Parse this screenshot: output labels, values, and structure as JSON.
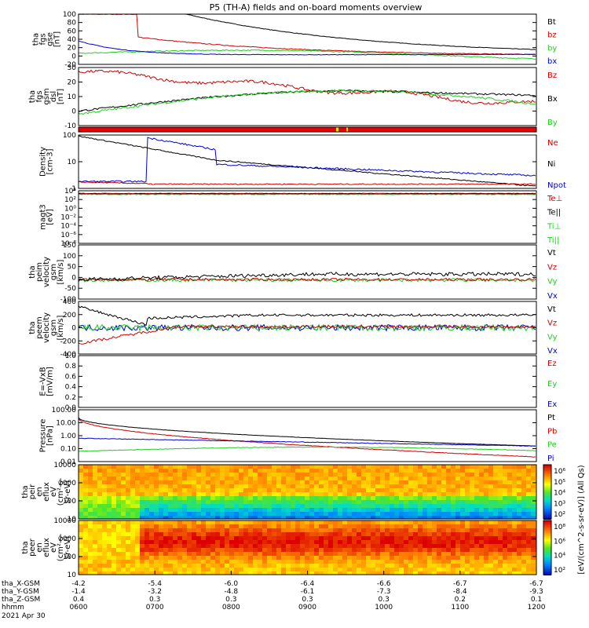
{
  "title": "P5 (TH-A) fields and on-board moments overview",
  "colors": {
    "black": "#000000",
    "red": "#cc0000",
    "green": "#22cc22",
    "blue": "#0000cc"
  },
  "panels": [
    {
      "id": "fgs-gse",
      "ylabel": [
        "tha",
        "fgs",
        "gse",
        "[nT]"
      ],
      "ticks": [
        "100",
        "80",
        "60",
        "40",
        "20",
        "0",
        "-20"
      ],
      "series": [
        {
          "name": "Bt",
          "color": "black"
        },
        {
          "name": "bz",
          "color": "red"
        },
        {
          "name": "by",
          "color": "green"
        },
        {
          "name": "bx",
          "color": "blue"
        }
      ]
    },
    {
      "id": "fgs-gsm",
      "ylabel": [
        "tha",
        "fgs",
        "gsm",
        "dsl",
        "[nT]"
      ],
      "ticks": [
        "30",
        "20",
        "10",
        "0",
        "-10"
      ],
      "series": [
        {
          "name": "Bz",
          "color": "red"
        },
        {
          "name": "Bx",
          "color": "black"
        },
        {
          "name": "By",
          "color": "green"
        }
      ]
    },
    {
      "id": "flags",
      "ylabel": [],
      "ticks": [],
      "series": []
    },
    {
      "id": "density",
      "ylabel": [
        "Density",
        "[cm-3]"
      ],
      "ticks": [
        "100",
        "10",
        "1"
      ],
      "series": [
        {
          "name": "Ne",
          "color": "red"
        },
        {
          "name": "Ni",
          "color": "black"
        },
        {
          "name": "Npot",
          "color": "blue"
        }
      ]
    },
    {
      "id": "temp",
      "ylabel": [
        "magt3",
        "[eV]"
      ],
      "ticks": [
        "10⁴",
        "10²",
        "10⁰",
        "10⁻²",
        "10⁻⁴",
        "10⁻⁶",
        "10⁻⁸"
      ],
      "series": [
        {
          "name": "Te⊥",
          "color": "red"
        },
        {
          "name": "Te||",
          "color": "black"
        },
        {
          "name": "Ti⊥",
          "color": "green"
        },
        {
          "name": "Ti||",
          "color": "green"
        }
      ]
    },
    {
      "id": "peim-vel",
      "ylabel": [
        "tha",
        "peim",
        "velocity",
        "gsm",
        "[km/s]"
      ],
      "ticks": [
        "150",
        "100",
        "50",
        "0",
        "-50",
        "-100"
      ],
      "series": [
        {
          "name": "Vt",
          "color": "black"
        },
        {
          "name": "Vz",
          "color": "red"
        },
        {
          "name": "Vy",
          "color": "green"
        },
        {
          "name": "Vx",
          "color": "blue"
        }
      ]
    },
    {
      "id": "peem-vel",
      "ylabel": [
        "tha",
        "peem",
        "velocity",
        "gsm",
        "[km/s]"
      ],
      "ticks": [
        "400",
        "200",
        "0",
        "-200",
        "-400"
      ],
      "series": [
        {
          "name": "Vt",
          "color": "black"
        },
        {
          "name": "Vz",
          "color": "red"
        },
        {
          "name": "Vy",
          "color": "green"
        },
        {
          "name": "Vx",
          "color": "blue"
        }
      ]
    },
    {
      "id": "efield",
      "ylabel": [
        "E=-VxB",
        "[mV/m]"
      ],
      "ticks": [
        "1.0",
        "0.8",
        "0.6",
        "0.4",
        "0.2",
        "0.0"
      ],
      "series": [
        {
          "name": "Ez",
          "color": "red"
        },
        {
          "name": "Ey",
          "color": "green"
        },
        {
          "name": "Ex",
          "color": "blue"
        }
      ]
    },
    {
      "id": "pressure",
      "ylabel": [
        "Pressure",
        "[nPa]"
      ],
      "ticks": [
        "100.00",
        "10.00",
        "1.00",
        "0.10",
        "0.01"
      ],
      "series": [
        {
          "name": "Pt",
          "color": "black"
        },
        {
          "name": "Pb",
          "color": "red"
        },
        {
          "name": "Pe",
          "color": "green"
        },
        {
          "name": "Pi",
          "color": "blue"
        }
      ]
    },
    {
      "id": "peir-spec",
      "ylabel": [
        "tha",
        "peir",
        "en",
        "eflux",
        "eV",
        "(cm²-s-",
        "sr-eV)"
      ],
      "ticks": [
        "10000",
        "1000",
        "100",
        "10"
      ],
      "series": []
    },
    {
      "id": "peer-spec",
      "ylabel": [
        "tha",
        "peer",
        "en",
        "eflux",
        "eV",
        "(cm²-s-",
        "sr-eV)"
      ],
      "ticks": [
        "10000",
        "1000",
        "100",
        "10"
      ],
      "series": []
    }
  ],
  "colorbar": {
    "upper_ticks": [
      "10⁶",
      "10⁵",
      "10⁴",
      "10³",
      "10²"
    ],
    "lower_ticks": [
      "10⁸",
      "10⁶",
      "10⁴",
      "10²"
    ],
    "label": "[eV/(cm^2-s-sr-eV)] (All Qs)"
  },
  "xaxis": {
    "rows": [
      {
        "label": "tha_X-GSM",
        "values": [
          "-4.2",
          "-5.4",
          "-6.0",
          "-6.4",
          "-6.6",
          "-6.7",
          "-6.7"
        ]
      },
      {
        "label": "tha_Y-GSM",
        "values": [
          "-1.4",
          "-3.2",
          "-4.8",
          "-6.1",
          "-7.3",
          "-8.4",
          "-9.3"
        ]
      },
      {
        "label": "tha_Z-GSM",
        "values": [
          "0.4",
          "0.3",
          "0.3",
          "0.3",
          "0.3",
          "0.2",
          "0.1"
        ]
      },
      {
        "label": "hhmm",
        "values": [
          "0600",
          "0700",
          "0800",
          "0900",
          "1000",
          "1100",
          "1200"
        ]
      }
    ],
    "date": "2021 Apr 30"
  }
}
